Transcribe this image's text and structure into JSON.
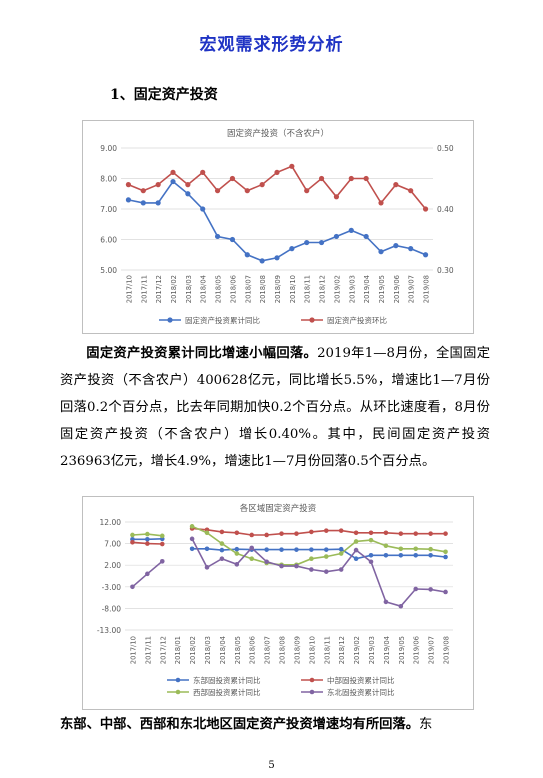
{
  "header": {
    "title": "宏观需求形势分析"
  },
  "section": {
    "heading": "1、固定资产投资"
  },
  "paragraph1": {
    "lead": "固定资产投资累计同比增速小幅回落。",
    "body": "2019年1—8月份，全国固定资产投资（不含农户）400628亿元，同比增长5.5%，增速比1—7月份回落0.2个百分点，比去年同期加快0.2个百分点。从环比速度看，8月份固定资产投资（不含农户）增长0.40%。其中，民间固定资产投资236963亿元，增长4.9%，增速比1—7月份回落0.5个百分点。"
  },
  "paragraph2": {
    "lead": "东部、中部、西部和东北地区固定资产投资增速均有所回落。",
    "body": "东"
  },
  "footer": {
    "page": "5"
  },
  "chart_data": [
    {
      "type": "line",
      "title": "固定资产投资（不含农户）",
      "categories": [
        "2017/10",
        "2017/11",
        "2017/12",
        "2018/02",
        "2018/03",
        "2018/04",
        "2018/05",
        "2018/06",
        "2018/07",
        "2018/08",
        "2018/09",
        "2018/10",
        "2018/11",
        "2018/12",
        "2019/02",
        "2019/03",
        "2019/04",
        "2019/05",
        "2019/06",
        "2019/07",
        "2019/08"
      ],
      "ylim": [
        5.0,
        9.0
      ],
      "yticks": [
        "9.00",
        "8.00",
        "7.00",
        "6.00",
        "5.00"
      ],
      "y2lim": [
        0.3,
        0.5
      ],
      "y2ticks": [
        "0.50",
        "0.40",
        "0.30"
      ],
      "grid": true,
      "legend": "bottom",
      "series": [
        {
          "name": "固定资产投资累计同比",
          "axis": "left",
          "color": "#4472c4",
          "values": [
            7.3,
            7.2,
            7.2,
            7.9,
            7.5,
            7.0,
            6.1,
            6.0,
            5.5,
            5.3,
            5.4,
            5.7,
            5.9,
            5.9,
            6.1,
            6.3,
            6.1,
            5.6,
            5.8,
            5.7,
            5.5
          ]
        },
        {
          "name": "固定资产投资环比",
          "axis": "right",
          "color": "#c0504d",
          "values": [
            0.44,
            0.43,
            0.44,
            0.46,
            0.44,
            0.46,
            0.43,
            0.45,
            0.43,
            0.44,
            0.46,
            0.47,
            0.43,
            0.45,
            0.42,
            0.45,
            0.45,
            0.41,
            0.44,
            0.43,
            0.4
          ]
        }
      ]
    },
    {
      "type": "line",
      "title": "各区域固定资产投资",
      "categories": [
        "2017/10",
        "2017/11",
        "2017/12",
        "2018/01",
        "2018/02",
        "2018/03",
        "2018/04",
        "2018/05",
        "2018/06",
        "2018/07",
        "2018/08",
        "2018/09",
        "2018/10",
        "2018/11",
        "2018/12",
        "2019/02",
        "2019/03",
        "2019/04",
        "2019/05",
        "2019/06",
        "2019/07",
        "2019/08"
      ],
      "ylim": [
        -13.0,
        12.0
      ],
      "yticks": [
        "12.00",
        "7.00",
        "2.00",
        "-3.00",
        "-8.00",
        "-13.00"
      ],
      "grid": true,
      "legend": "bottom",
      "series": [
        {
          "name": "东部固投资累计同比",
          "color": "#4472c4",
          "values": [
            8.0,
            8.0,
            8.1,
            null,
            5.8,
            5.8,
            5.5,
            5.7,
            5.6,
            5.6,
            5.6,
            5.6,
            5.6,
            5.6,
            5.7,
            3.5,
            4.3,
            4.3,
            4.3,
            4.3,
            4.3,
            3.9
          ]
        },
        {
          "name": "中部固投资累计同比",
          "color": "#c0504d",
          "values": [
            7.3,
            7.0,
            6.9,
            null,
            10.5,
            10.2,
            9.7,
            9.5,
            9.0,
            9.0,
            9.3,
            9.3,
            9.7,
            10.0,
            10.0,
            9.5,
            9.5,
            9.5,
            9.3,
            9.3,
            9.3,
            9.3
          ]
        },
        {
          "name": "西部固投资累计同比",
          "color": "#9bbb59",
          "values": [
            9.0,
            9.2,
            8.8,
            null,
            11.0,
            9.5,
            7.0,
            4.7,
            3.5,
            2.5,
            2.1,
            2.1,
            3.5,
            4.0,
            4.7,
            7.5,
            7.8,
            6.5,
            5.8,
            5.8,
            5.7,
            5.1
          ]
        },
        {
          "name": "东北固投资累计同比",
          "color": "#8064a2",
          "values": [
            -3.0,
            0.0,
            2.9,
            null,
            8.1,
            1.5,
            3.5,
            2.2,
            6.0,
            2.8,
            1.8,
            1.8,
            1.0,
            0.5,
            1.0,
            5.5,
            2.8,
            -6.5,
            -7.5,
            -3.5,
            -3.6,
            -4.2
          ]
        }
      ]
    }
  ]
}
